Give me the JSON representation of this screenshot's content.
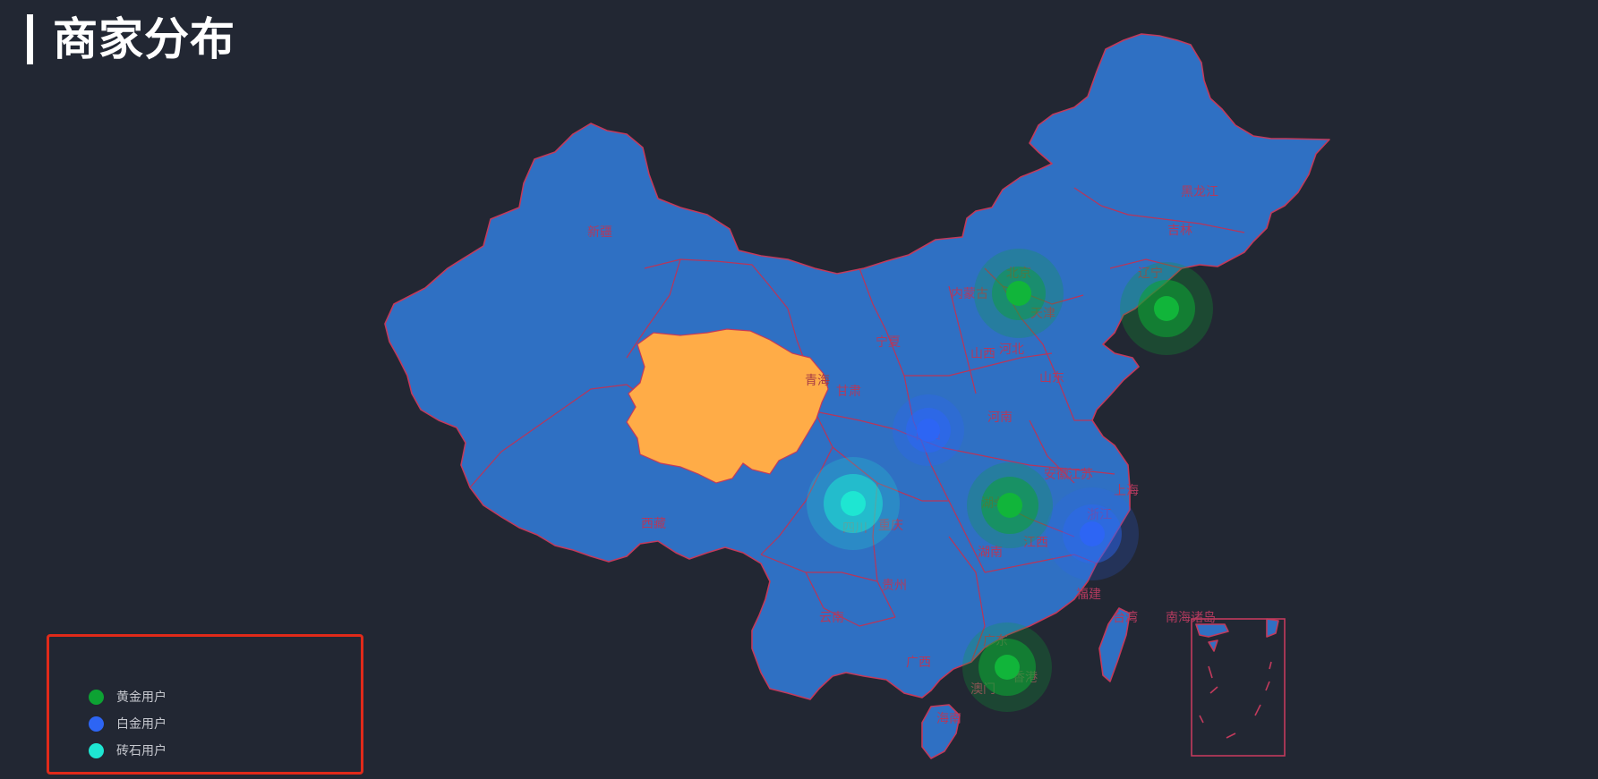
{
  "title": "商家分布",
  "legend": {
    "items": [
      {
        "label": "黄金用户",
        "color": "#0da233"
      },
      {
        "label": "白金用户",
        "color": "#2d65f4"
      },
      {
        "label": "砖石用户",
        "color": "#1ee6d2"
      }
    ]
  },
  "provinces": {
    "xinjiang": "新疆",
    "xizang": "西藏",
    "qinghai": "青海",
    "gansu": "甘肃",
    "ningxia": "宁夏",
    "neimenggu": "内蒙古",
    "heilongjiang": "黑龙江",
    "jilin": "吉林",
    "liaoning": "辽宁",
    "beijing": "北京",
    "tianjin": "天津",
    "hebei": "河北",
    "shanxi": "山西",
    "shandong": "山东",
    "henan": "河南",
    "jiangsu": "江苏",
    "anhui": "安徽",
    "shanghai": "上海",
    "zhejiang": "浙江",
    "hubei": "湖北",
    "hunan": "湖南",
    "jiangxi": "江西",
    "fujian": "福建",
    "taiwan": "台湾",
    "guangdong": "广东",
    "guangxi": "广西",
    "hainan": "海南",
    "yunnan": "云南",
    "guizhou": "贵州",
    "sichuan": "四川",
    "chongqing": "重庆",
    "shaanxi": "陕西",
    "hongkong": "香港",
    "macau": "澳门",
    "nanhai": "南海诸岛"
  },
  "highlighted_province": "青海",
  "highlight_color": "#ffac47",
  "map_fill_color": "#2f70c3",
  "border_color": "#c23a5c",
  "scatter_points": [
    {
      "near": "北京",
      "tier": "黄金用户"
    },
    {
      "near": "辽宁",
      "tier": "黄金用户"
    },
    {
      "near": "陕西",
      "tier": "白金用户"
    },
    {
      "near": "四川",
      "tier": "砖石用户"
    },
    {
      "near": "湖北",
      "tier": "黄金用户"
    },
    {
      "near": "浙江",
      "tier": "白金用户"
    },
    {
      "near": "广东",
      "tier": "黄金用户"
    }
  ]
}
